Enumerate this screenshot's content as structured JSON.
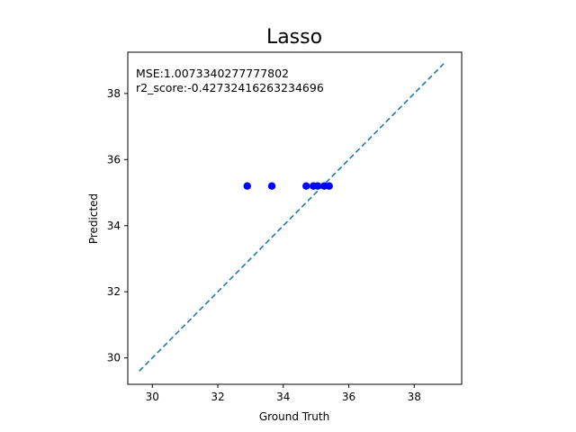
{
  "chart_data": {
    "type": "scatter",
    "title": "Lasso",
    "xlabel": "Ground Truth",
    "ylabel": "Predicted",
    "xlim": [
      29.25,
      39.45
    ],
    "ylim": [
      29.2,
      39.25
    ],
    "xticks": [
      30,
      32,
      34,
      36,
      38
    ],
    "yticks": [
      30,
      32,
      34,
      36,
      38
    ],
    "annotations": [
      "MSE:1.0073340277777802",
      "r2_score:-0.42732416263234696"
    ],
    "points": [
      {
        "x": 32.9,
        "y": 35.2
      },
      {
        "x": 33.65,
        "y": 35.2
      },
      {
        "x": 34.7,
        "y": 35.2
      },
      {
        "x": 34.92,
        "y": 35.2
      },
      {
        "x": 35.05,
        "y": 35.2
      },
      {
        "x": 35.25,
        "y": 35.2
      },
      {
        "x": 35.4,
        "y": 35.2
      }
    ],
    "reference_line": {
      "style": "dashed",
      "x": [
        29.6,
        38.9
      ],
      "y": [
        29.6,
        38.9
      ]
    },
    "point_color": "#0000ff",
    "line_color": "#1f77b4",
    "grid": false,
    "legend": "none"
  }
}
